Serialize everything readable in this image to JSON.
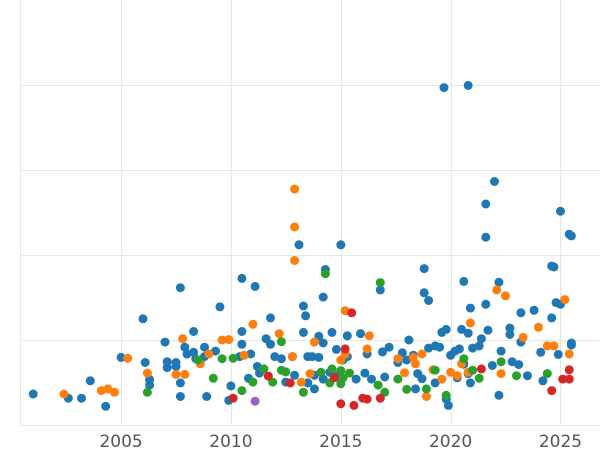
{
  "chart_data": {
    "type": "scatter",
    "title": "",
    "xlabel": "",
    "ylabel": "",
    "xlim": [
      2000.4,
      2026.8
    ],
    "ylim": [
      0,
      100
    ],
    "xticks": [
      2005,
      2010,
      2015,
      2020,
      2025
    ],
    "xtick_labels": [
      "2005",
      "2010",
      "2015",
      "2020",
      "2025"
    ],
    "ygrid": [
      0,
      20,
      40,
      60,
      80
    ],
    "grid": true,
    "legend": "none",
    "series": [
      {
        "color": "#1f77b4",
        "points": [
          [
            2001.0,
            7.3
          ],
          [
            2002.6,
            6.3
          ],
          [
            2003.2,
            6.3
          ],
          [
            2003.6,
            10.4
          ],
          [
            2004.3,
            4.4
          ],
          [
            2005.0,
            15.9
          ],
          [
            2006.0,
            25.0
          ],
          [
            2006.1,
            14.7
          ],
          [
            2006.3,
            10.7
          ],
          [
            2006.3,
            9.4
          ],
          [
            2007.0,
            19.5
          ],
          [
            2007.1,
            14.9
          ],
          [
            2007.1,
            13.5
          ],
          [
            2007.5,
            14.7
          ],
          [
            2007.5,
            13.8
          ],
          [
            2007.7,
            32.3
          ],
          [
            2007.7,
            9.9
          ],
          [
            2007.7,
            6.7
          ],
          [
            2007.9,
            18.3
          ],
          [
            2008.0,
            16.7
          ],
          [
            2008.3,
            17.1
          ],
          [
            2008.3,
            22.0
          ],
          [
            2008.4,
            15.6
          ],
          [
            2008.6,
            14.7
          ],
          [
            2008.8,
            16.1
          ],
          [
            2008.8,
            18.3
          ],
          [
            2008.9,
            6.7
          ],
          [
            2009.3,
            17.4
          ],
          [
            2009.5,
            27.8
          ],
          [
            2009.9,
            5.8
          ],
          [
            2010.0,
            9.2
          ],
          [
            2010.4,
            16.1
          ],
          [
            2010.5,
            19.0
          ],
          [
            2010.5,
            22.0
          ],
          [
            2010.5,
            34.5
          ],
          [
            2010.8,
            11.0
          ],
          [
            2010.9,
            16.7
          ],
          [
            2011.1,
            32.6
          ],
          [
            2011.2,
            13.8
          ],
          [
            2011.3,
            12.2
          ],
          [
            2011.6,
            20.3
          ],
          [
            2011.8,
            25.2
          ],
          [
            2011.8,
            19.0
          ],
          [
            2012.0,
            16.1
          ],
          [
            2012.3,
            15.6
          ],
          [
            2012.5,
            10.1
          ],
          [
            2012.8,
            16.1
          ],
          [
            2012.9,
            11.7
          ],
          [
            2013.1,
            42.4
          ],
          [
            2013.3,
            21.8
          ],
          [
            2013.3,
            28.0
          ],
          [
            2013.4,
            25.7
          ],
          [
            2013.5,
            16.1
          ],
          [
            2013.5,
            9.9
          ],
          [
            2013.7,
            16.1
          ],
          [
            2013.8,
            8.5
          ],
          [
            2013.8,
            11.7
          ],
          [
            2014.0,
            15.9
          ],
          [
            2014.0,
            20.9
          ],
          [
            2014.2,
            10.8
          ],
          [
            2014.2,
            19.3
          ],
          [
            2014.2,
            30.1
          ],
          [
            2014.3,
            36.6
          ],
          [
            2014.5,
            12.4
          ],
          [
            2014.6,
            21.8
          ],
          [
            2014.8,
            11.5
          ],
          [
            2014.8,
            17.8
          ],
          [
            2015.0,
            42.4
          ],
          [
            2015.1,
            15.3
          ],
          [
            2015.3,
            16.1
          ],
          [
            2015.3,
            21.0
          ],
          [
            2015.7,
            10.8
          ],
          [
            2015.9,
            21.5
          ],
          [
            2016.1,
            12.2
          ],
          [
            2016.2,
            16.7
          ],
          [
            2016.4,
            10.8
          ],
          [
            2016.8,
            31.8
          ],
          [
            2016.9,
            17.2
          ],
          [
            2017.0,
            11.3
          ],
          [
            2017.2,
            18.3
          ],
          [
            2017.6,
            14.7
          ],
          [
            2017.8,
            17.0
          ],
          [
            2018.0,
            15.3
          ],
          [
            2018.1,
            20.0
          ],
          [
            2018.3,
            16.4
          ],
          [
            2018.4,
            8.5
          ],
          [
            2018.5,
            12.1
          ],
          [
            2018.7,
            10.9
          ],
          [
            2018.8,
            36.8
          ],
          [
            2018.8,
            31.1
          ],
          [
            2019.0,
            29.3
          ],
          [
            2019.0,
            18.1
          ],
          [
            2019.3,
            9.9
          ],
          [
            2019.3,
            18.6
          ],
          [
            2019.5,
            18.3
          ],
          [
            2019.6,
            21.8
          ],
          [
            2019.7,
            79.4
          ],
          [
            2019.8,
            22.5
          ],
          [
            2019.8,
            6.1
          ],
          [
            2019.9,
            4.6
          ],
          [
            2020.0,
            16.4
          ],
          [
            2020.2,
            17.4
          ],
          [
            2020.3,
            11.1
          ],
          [
            2020.4,
            17.9
          ],
          [
            2020.5,
            22.5
          ],
          [
            2020.6,
            33.8
          ],
          [
            2020.6,
            14.3
          ],
          [
            2020.8,
            79.9
          ],
          [
            2020.8,
            21.6
          ],
          [
            2020.8,
            12.1
          ],
          [
            2020.9,
            9.9
          ],
          [
            2020.9,
            27.5
          ],
          [
            2021.0,
            18.1
          ],
          [
            2021.3,
            18.6
          ],
          [
            2021.4,
            20.3
          ],
          [
            2021.6,
            44.2
          ],
          [
            2021.6,
            52.0
          ],
          [
            2021.6,
            28.4
          ],
          [
            2021.7,
            22.3
          ],
          [
            2021.9,
            14.0
          ],
          [
            2022.0,
            57.3
          ],
          [
            2022.2,
            33.6
          ],
          [
            2022.2,
            7.0
          ],
          [
            2022.3,
            17.4
          ],
          [
            2022.7,
            22.8
          ],
          [
            2022.7,
            21.3
          ],
          [
            2022.8,
            14.9
          ],
          [
            2023.1,
            14.2
          ],
          [
            2023.2,
            19.5
          ],
          [
            2023.2,
            26.4
          ],
          [
            2023.5,
            11.6
          ],
          [
            2023.8,
            27.0
          ],
          [
            2024.1,
            17.1
          ],
          [
            2024.2,
            10.4
          ],
          [
            2024.6,
            37.4
          ],
          [
            2024.6,
            25.2
          ],
          [
            2024.7,
            37.2
          ],
          [
            2024.8,
            28.8
          ],
          [
            2024.9,
            16.6
          ],
          [
            2025.0,
            50.3
          ],
          [
            2025.0,
            28.4
          ],
          [
            2025.4,
            44.9
          ],
          [
            2025.5,
            44.5
          ],
          [
            2025.5,
            19.3
          ],
          [
            2025.5,
            18.8
          ]
        ]
      },
      {
        "color": "#ff7f0e",
        "points": [
          [
            2002.4,
            7.3
          ],
          [
            2004.1,
            8.1
          ],
          [
            2004.4,
            8.5
          ],
          [
            2004.7,
            7.7
          ],
          [
            2005.3,
            15.7
          ],
          [
            2006.2,
            12.2
          ],
          [
            2007.5,
            11.9
          ],
          [
            2007.8,
            20.3
          ],
          [
            2007.9,
            11.9
          ],
          [
            2008.6,
            14.4
          ],
          [
            2009.0,
            16.7
          ],
          [
            2009.6,
            20.0
          ],
          [
            2009.9,
            20.1
          ],
          [
            2010.6,
            16.4
          ],
          [
            2011.0,
            23.7
          ],
          [
            2012.2,
            21.5
          ],
          [
            2012.8,
            16.1
          ],
          [
            2012.9,
            55.5
          ],
          [
            2012.9,
            46.6
          ],
          [
            2012.9,
            38.7
          ],
          [
            2013.2,
            10.1
          ],
          [
            2013.6,
            12.1
          ],
          [
            2013.8,
            19.5
          ],
          [
            2015.0,
            15.3
          ],
          [
            2015.2,
            16.7
          ],
          [
            2015.2,
            26.9
          ],
          [
            2016.2,
            17.9
          ],
          [
            2016.3,
            21.0
          ],
          [
            2017.6,
            15.6
          ],
          [
            2017.9,
            12.3
          ],
          [
            2018.3,
            15.9
          ],
          [
            2018.4,
            14.4
          ],
          [
            2018.7,
            16.7
          ],
          [
            2018.9,
            6.7
          ],
          [
            2019.2,
            13.0
          ],
          [
            2019.6,
            10.8
          ],
          [
            2020.0,
            12.4
          ],
          [
            2020.3,
            11.6
          ],
          [
            2020.5,
            14.4
          ],
          [
            2020.8,
            12.4
          ],
          [
            2020.9,
            24.0
          ],
          [
            2022.1,
            31.8
          ],
          [
            2022.3,
            12.1
          ],
          [
            2022.5,
            30.4
          ],
          [
            2023.3,
            20.6
          ],
          [
            2024.0,
            23.0
          ],
          [
            2024.4,
            18.6
          ],
          [
            2024.7,
            18.6
          ],
          [
            2025.2,
            29.5
          ],
          [
            2025.4,
            16.7
          ]
        ]
      },
      {
        "color": "#2ca02c",
        "points": [
          [
            2006.2,
            7.7
          ],
          [
            2008.5,
            15.3
          ],
          [
            2009.2,
            11.0
          ],
          [
            2009.6,
            15.6
          ],
          [
            2010.1,
            15.7
          ],
          [
            2010.5,
            8.1
          ],
          [
            2011.0,
            10.1
          ],
          [
            2011.5,
            13.2
          ],
          [
            2011.9,
            10.1
          ],
          [
            2012.3,
            12.9
          ],
          [
            2012.3,
            19.6
          ],
          [
            2012.5,
            12.5
          ],
          [
            2013.3,
            7.7
          ],
          [
            2014.1,
            12.4
          ],
          [
            2014.3,
            35.6
          ],
          [
            2014.5,
            9.9
          ],
          [
            2014.6,
            13.2
          ],
          [
            2015.0,
            12.8
          ],
          [
            2015.0,
            9.7
          ],
          [
            2015.1,
            11.1
          ],
          [
            2015.4,
            12.2
          ],
          [
            2016.7,
            9.4
          ],
          [
            2016.8,
            33.5
          ],
          [
            2017.0,
            7.7
          ],
          [
            2017.6,
            10.8
          ],
          [
            2018.0,
            8.4
          ],
          [
            2018.9,
            8.5
          ],
          [
            2019.3,
            12.9
          ],
          [
            2019.8,
            7.0
          ],
          [
            2020.6,
            15.6
          ],
          [
            2021.0,
            12.9
          ],
          [
            2021.3,
            11.0
          ],
          [
            2022.3,
            14.9
          ],
          [
            2023.0,
            11.6
          ],
          [
            2024.4,
            12.1
          ]
        ]
      },
      {
        "color": "#d62728",
        "points": [
          [
            2010.1,
            6.3
          ],
          [
            2011.7,
            11.5
          ],
          [
            2012.7,
            9.9
          ],
          [
            2014.7,
            11.1
          ],
          [
            2015.0,
            5.0
          ],
          [
            2015.2,
            17.9
          ],
          [
            2015.5,
            26.4
          ],
          [
            2015.6,
            4.6
          ],
          [
            2016.0,
            6.3
          ],
          [
            2016.2,
            6.1
          ],
          [
            2016.8,
            6.3
          ],
          [
            2021.4,
            13.2
          ],
          [
            2024.6,
            8.1
          ],
          [
            2025.1,
            10.8
          ],
          [
            2025.4,
            13.0
          ],
          [
            2025.4,
            10.8
          ]
        ]
      },
      {
        "color": "#9467bd",
        "points": [
          [
            2011.1,
            5.6
          ]
        ]
      }
    ]
  }
}
